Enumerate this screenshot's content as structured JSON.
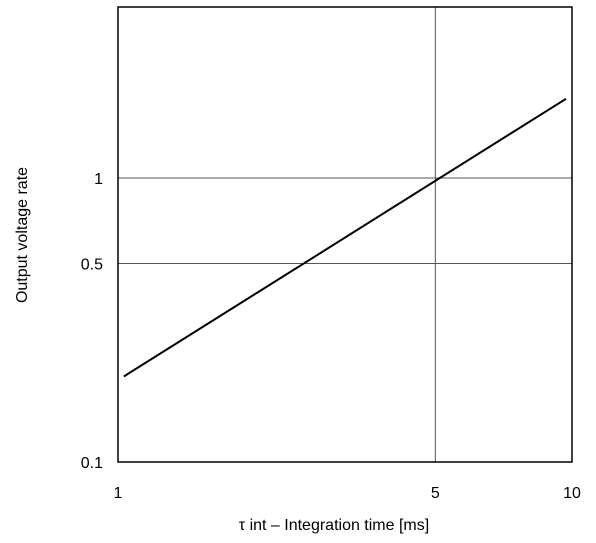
{
  "chart_data": {
    "type": "line",
    "title": "",
    "xlabel": "τ int – Integration time [ms]",
    "ylabel": "Output voltage rate",
    "xscale": "log",
    "yscale": "log",
    "xlim": [
      1,
      10
    ],
    "ylim": [
      0.1,
      4
    ],
    "x_ticks": [
      {
        "value": 1,
        "label": "1"
      },
      {
        "value": 5,
        "label": "5"
      },
      {
        "value": 10,
        "label": "10"
      }
    ],
    "y_ticks": [
      {
        "value": 0.1,
        "label": "0.1"
      },
      {
        "value": 0.5,
        "label": "0.5"
      },
      {
        "value": 1,
        "label": "1"
      }
    ],
    "gridlines": {
      "x": [
        5
      ],
      "y": [
        0.5,
        1
      ]
    },
    "series": [
      {
        "x": [
          1.03,
          9.7
        ],
        "y": [
          0.2,
          1.9
        ]
      }
    ],
    "colors": {
      "line": "#000000",
      "grid": "#555555",
      "frame": "#000000"
    }
  }
}
